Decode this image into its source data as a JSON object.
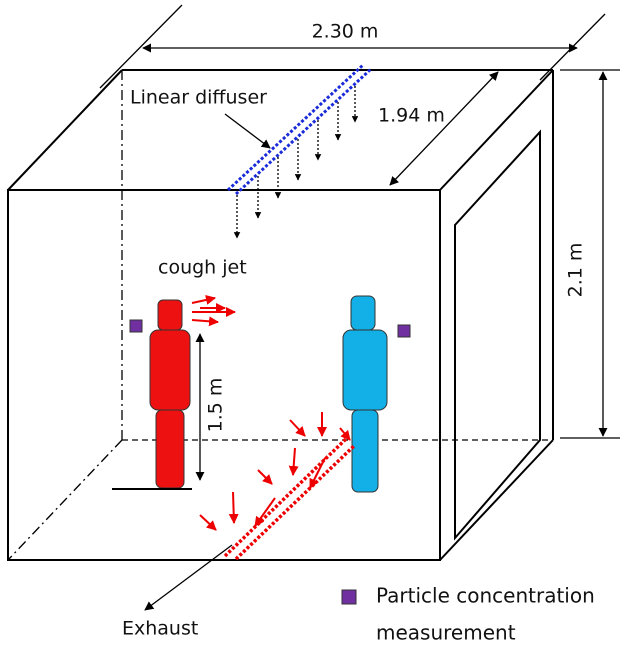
{
  "labels": {
    "width": "2.30 m",
    "depth": "1.94 m",
    "height": "2.1 m",
    "diffuser": "Linear diffuser",
    "cough": "cough jet",
    "mouth_height": "1.5 m",
    "exhaust": "Exhaust"
  },
  "legend": {
    "line1": "Particle concentration",
    "line2": "measurement"
  }
}
